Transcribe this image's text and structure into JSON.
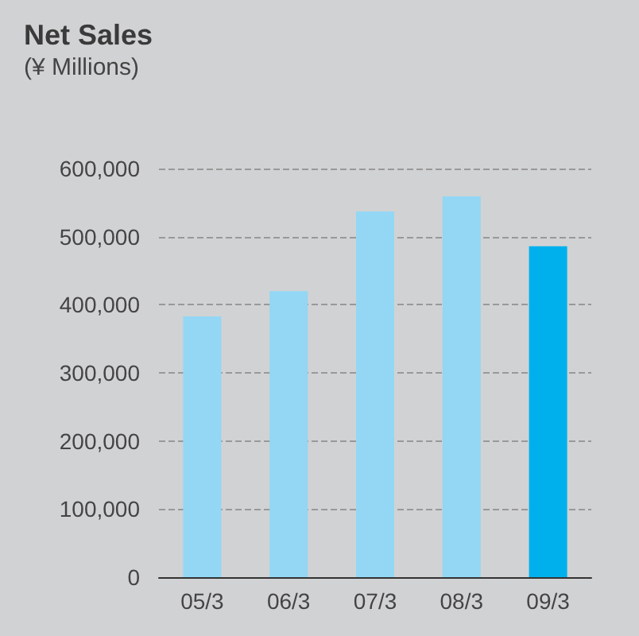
{
  "chart_data": {
    "type": "bar",
    "title": "Net Sales",
    "subtitle": "(¥ Millions)",
    "categories": [
      "05/3",
      "06/3",
      "07/3",
      "08/3",
      "09/3"
    ],
    "values": [
      383000,
      420000,
      537000,
      559000,
      486000
    ],
    "colors": [
      "#93d7f5",
      "#93d7f5",
      "#93d7f5",
      "#93d7f5",
      "#00b0ec"
    ],
    "ylim": [
      0,
      600000
    ],
    "yticks": [
      0,
      {
        "value": 100000,
        "label": "100,000"
      },
      {
        "value": 200000,
        "label": "200,000"
      },
      {
        "value": 300000,
        "label": "300,000"
      },
      {
        "value": 400000,
        "label": "400,000"
      },
      {
        "value": 500000,
        "label": "500,000"
      },
      {
        "value": 600000,
        "label": "600,000"
      }
    ],
    "grid": "y"
  }
}
